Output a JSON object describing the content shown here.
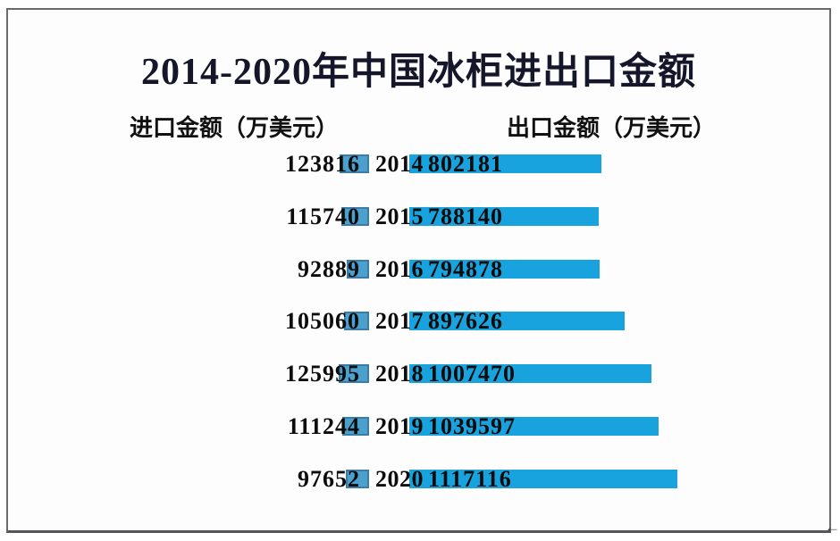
{
  "window": {
    "corner_arrow_icon": "←"
  },
  "chart_data": {
    "type": "bar",
    "variant": "bidirectional-horizontal",
    "title": "2014-2020年中国冰柜进出口金额",
    "categories": [
      "2014",
      "2015",
      "2016",
      "2017",
      "2018",
      "2019",
      "2020"
    ],
    "series": [
      {
        "name": "进口金额（万美元）",
        "side": "left",
        "color": "#4ba0cd",
        "border_color": "#3c7ca4",
        "values": [
          123816,
          115740,
          92889,
          105060,
          125995,
          111244,
          97652
        ]
      },
      {
        "name": "出口金额（万美元）",
        "side": "right",
        "color": "#18a3de",
        "values": [
          802181,
          788140,
          794878,
          897626,
          1007470,
          1039597,
          1117116
        ]
      }
    ],
    "value_labels_shown": true,
    "axes_hidden": true,
    "grid": false,
    "legend_position": "top-as-column-headers",
    "xlim": [
      0,
      1150000
    ]
  }
}
